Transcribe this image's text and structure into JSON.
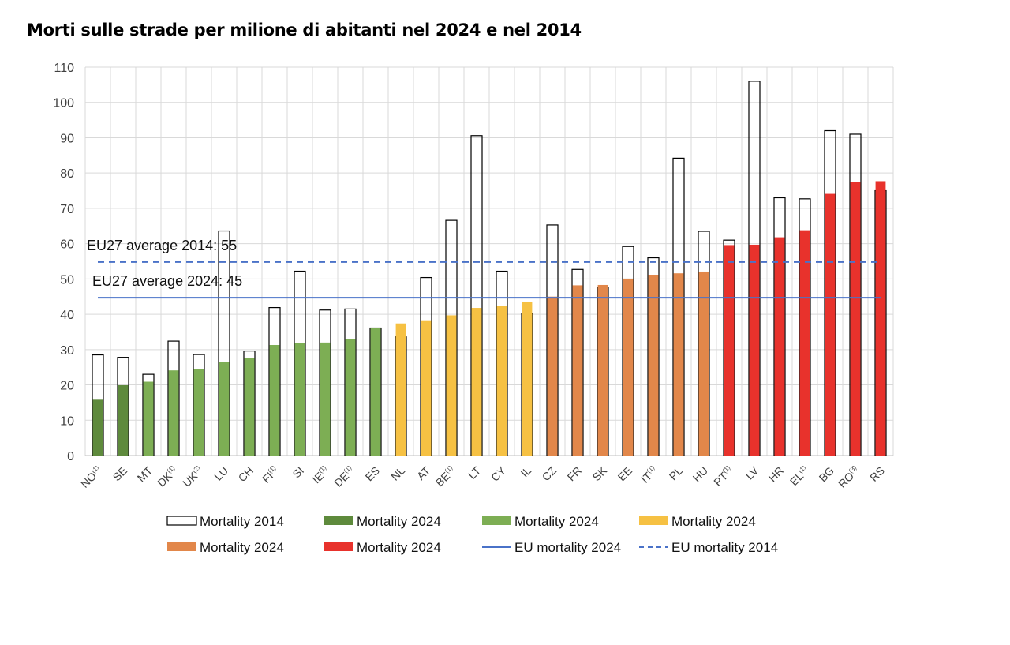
{
  "title": "Morti sulle strade per milione di abitanti nel 2024 e nel 2014",
  "chart_data": {
    "type": "bar",
    "title": "Morti sulle strade per milione di abitanti nel 2024 e nel 2014",
    "ylim": [
      0,
      110
    ],
    "yticks": [
      0,
      10,
      20,
      30,
      40,
      50,
      60,
      70,
      80,
      90,
      100,
      110
    ],
    "grid": true,
    "legend_position": "bottom",
    "categories": [
      {
        "code": "NO",
        "note": "(1)"
      },
      {
        "code": "SE",
        "note": ""
      },
      {
        "code": "MT",
        "note": ""
      },
      {
        "code": "DK",
        "note": "(1)"
      },
      {
        "code": "UK",
        "note": "(2)"
      },
      {
        "code": "LU",
        "note": ""
      },
      {
        "code": "CH",
        "note": ""
      },
      {
        "code": "FI",
        "note": "(1)"
      },
      {
        "code": "SI",
        "note": ""
      },
      {
        "code": "IE",
        "note": "(1)"
      },
      {
        "code": "DE",
        "note": "(1)"
      },
      {
        "code": "ES",
        "note": ""
      },
      {
        "code": "NL",
        "note": ""
      },
      {
        "code": "AT",
        "note": ""
      },
      {
        "code": "BE",
        "note": "(1)"
      },
      {
        "code": "LT",
        "note": ""
      },
      {
        "code": "CY",
        "note": ""
      },
      {
        "code": "IL",
        "note": ""
      },
      {
        "code": "CZ",
        "note": ""
      },
      {
        "code": "FR",
        "note": ""
      },
      {
        "code": "SK",
        "note": ""
      },
      {
        "code": "EE",
        "note": ""
      },
      {
        "code": "IT",
        "note": "(1)"
      },
      {
        "code": "PL",
        "note": ""
      },
      {
        "code": "HU",
        "note": ""
      },
      {
        "code": "PT",
        "note": "(1)"
      },
      {
        "code": "LV",
        "note": ""
      },
      {
        "code": "HR",
        "note": ""
      },
      {
        "code": "EL",
        "note": "(1)"
      },
      {
        "code": "BG",
        "note": ""
      },
      {
        "code": "RO",
        "note": "(3)"
      },
      {
        "code": "RS",
        "note": ""
      }
    ],
    "series": [
      {
        "name": "Mortality 2014",
        "values": [
          28.5,
          27.8,
          23,
          32.4,
          28.6,
          63.6,
          29.6,
          41.9,
          52.2,
          41.2,
          41.5,
          36.1,
          33.6,
          50.4,
          66.6,
          90.6,
          52.2,
          40.2,
          65.3,
          52.7,
          47.7,
          59.2,
          56,
          84.2,
          63.5,
          61,
          106,
          73,
          72.7,
          92,
          91,
          75
        ]
      },
      {
        "name": "Mortality 2024",
        "values": [
          15.8,
          19.9,
          20.9,
          24.1,
          24.4,
          26.6,
          27.6,
          31.3,
          31.8,
          32,
          33,
          36.1,
          37.4,
          38.3,
          39.7,
          41.8,
          42.3,
          43.6,
          45,
          48.2,
          48.3,
          50.1,
          51.2,
          51.6,
          52.1,
          59.6,
          59.7,
          61.8,
          63.8,
          74.1,
          77.4,
          77.7
        ]
      }
    ],
    "group_colors": [
      "#5e8a3c",
      "#5e8a3c",
      "#7dae54",
      "#7dae54",
      "#7dae54",
      "#7dae54",
      "#7dae54",
      "#7dae54",
      "#7dae54",
      "#7dae54",
      "#7dae54",
      "#7dae54",
      "#f6c143",
      "#f6c143",
      "#f6c143",
      "#f6c143",
      "#f6c143",
      "#f6c143",
      "#e2874a",
      "#e2874a",
      "#e2874a",
      "#e2874a",
      "#e2874a",
      "#e2874a",
      "#e2874a",
      "#e8322c",
      "#e8322c",
      "#e8322c",
      "#e8322c",
      "#e8322c",
      "#e8322c",
      "#e8322c"
    ],
    "reference_lines": [
      {
        "name": "EU mortality 2024",
        "value": 44.7,
        "style": "solid",
        "color": "#4a72c8",
        "annotation": "EU27 average 2024: 45"
      },
      {
        "name": "EU mortality 2014",
        "value": 54.8,
        "style": "dashed",
        "color": "#4a72c8",
        "annotation": "EU27 average 2014: 55"
      }
    ],
    "legend": [
      {
        "label": "Mortality 2014",
        "kind": "outline",
        "color": "#000000"
      },
      {
        "label": "Mortality 2024",
        "kind": "fill",
        "color": "#5e8a3c"
      },
      {
        "label": "Mortality 2024",
        "kind": "fill",
        "color": "#7dae54"
      },
      {
        "label": "Mortality 2024",
        "kind": "fill",
        "color": "#f6c143"
      },
      {
        "label": "Mortality 2024",
        "kind": "fill",
        "color": "#e2874a"
      },
      {
        "label": "Mortality 2024",
        "kind": "fill",
        "color": "#e8322c"
      },
      {
        "label": "EU mortality 2024",
        "kind": "line",
        "color": "#4a72c8"
      },
      {
        "label": "EU mortality 2014",
        "kind": "dash",
        "color": "#4a72c8"
      }
    ]
  }
}
